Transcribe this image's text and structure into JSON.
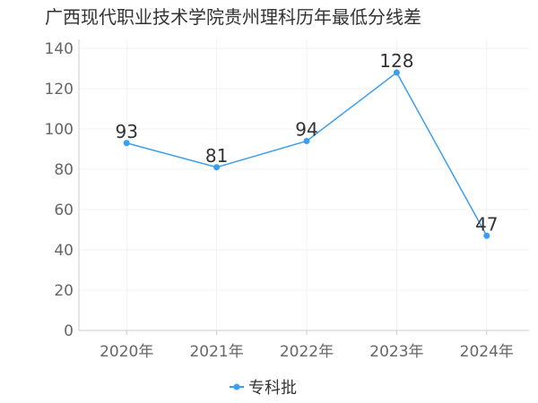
{
  "chart_data": {
    "type": "line",
    "title": "广西现代职业技术学院贵州理科历年最低分线差",
    "categories": [
      "2020年",
      "2021年",
      "2022年",
      "2023年",
      "2024年"
    ],
    "series": [
      {
        "name": "专科批",
        "values": [
          93,
          81,
          94,
          128,
          47
        ]
      }
    ],
    "ylim": [
      0,
      140
    ],
    "yticks": [
      0,
      20,
      40,
      60,
      80,
      100,
      120,
      140
    ],
    "grid": true,
    "legend": "bottom-center",
    "colors": {
      "series": "#3a9ff0",
      "axis": "#cccccc",
      "grid": "#f2f2f2"
    }
  }
}
